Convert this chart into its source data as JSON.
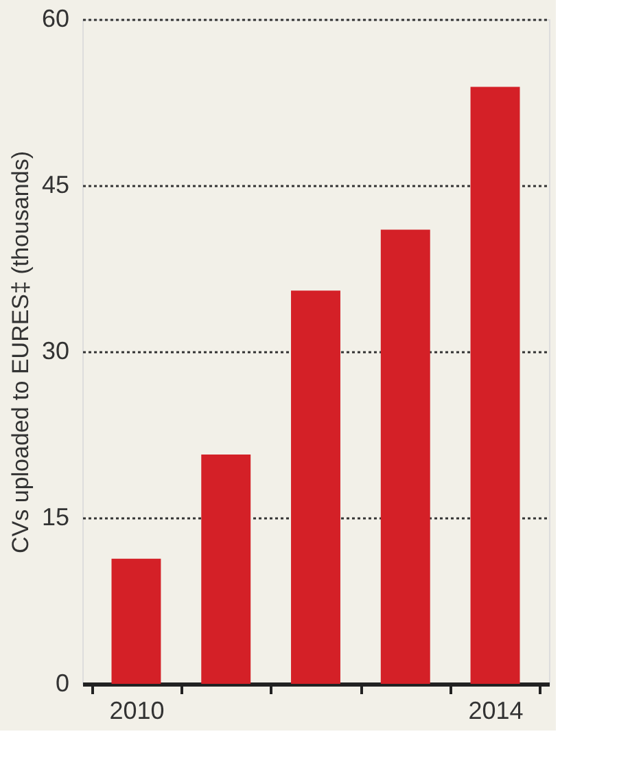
{
  "chart_data": {
    "type": "bar",
    "ylabel": "CVs uploaded to EURES‡ (thousands)",
    "categories": [
      "2010",
      null,
      null,
      null,
      "2014"
    ],
    "values": [
      11.3,
      20.7,
      35.5,
      41.0,
      53.9
    ],
    "color": "#d42027",
    "ylim": [
      0,
      60
    ],
    "yticks": [
      0,
      15,
      30,
      45,
      60
    ],
    "grid": "y"
  }
}
